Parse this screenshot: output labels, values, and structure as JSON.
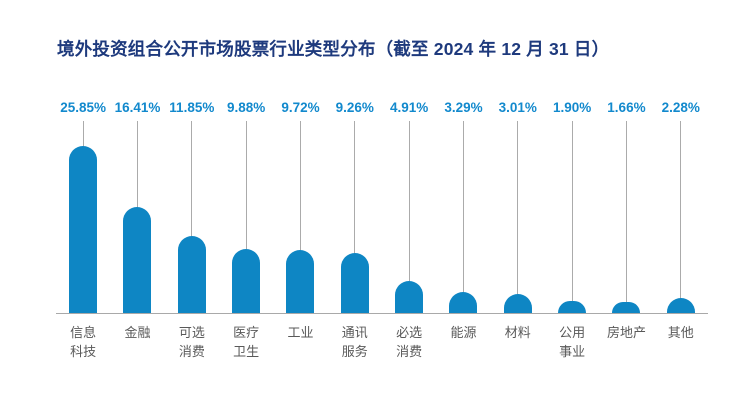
{
  "title": "境外投资组合公开市场股票行业类型分布（截至 2024 年 12 月 31 日）",
  "colors": {
    "background": "#FFFFFF",
    "title_text": "#1E3A7D",
    "bar_fill": "#0E86C4",
    "value_label_text": "#1289CD",
    "category_label_text": "#595959",
    "axis_line": "#A9A9A9",
    "stem_line": "#ABABAB"
  },
  "chart_data": {
    "type": "bar",
    "title": "境外投资组合公开市场股票行业类型分布（截至 2024 年 12 月 31 日）",
    "xlabel": "",
    "ylabel": "",
    "unit": "%",
    "grid": "off",
    "legend": "none",
    "bar_style": "rounded-top-lollipop",
    "ylim": [
      0,
      29.7
    ],
    "categories": [
      "信息科技",
      "金融",
      "可选消费",
      "医疗卫生",
      "工业",
      "通讯服务",
      "必选消费",
      "能源",
      "材料",
      "公用事业",
      "房地产",
      "其他"
    ],
    "categories_display": [
      "信息\n科技",
      "金融",
      "可选\n消费",
      "医疗\n卫生",
      "工业",
      "通讯\n服务",
      "必选\n消费",
      "能源",
      "材料",
      "公用\n事业",
      "房地产",
      "其他"
    ],
    "values": [
      25.85,
      16.41,
      11.85,
      9.88,
      9.72,
      9.26,
      4.91,
      3.29,
      3.01,
      1.9,
      1.66,
      2.28
    ],
    "value_labels": [
      "25.85%",
      "16.41%",
      "11.85%",
      "9.88%",
      "9.72%",
      "9.26%",
      "4.91%",
      "3.29%",
      "3.01%",
      "1.90%",
      "1.66%",
      "2.28%"
    ]
  }
}
